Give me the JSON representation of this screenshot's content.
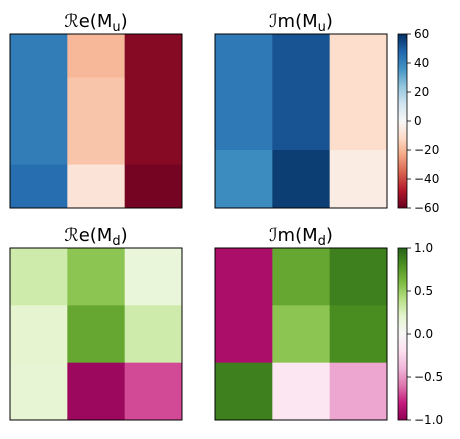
{
  "chart_data": [
    {
      "type": "heatmap",
      "title_main": "ℛe",
      "title_arg": "(M",
      "title_sub": "u",
      "title_end": ")",
      "colormap": "RdBu",
      "vmin": -60,
      "vmax": 60,
      "rows": 4,
      "cols": 3,
      "values": [
        [
          42,
          -20,
          -55
        ],
        [
          42,
          -17,
          -55
        ],
        [
          42,
          -17,
          -55
        ],
        [
          46,
          -8,
          -58
        ]
      ]
    },
    {
      "type": "heatmap",
      "title_main": "ℐm",
      "title_arg": "(M",
      "title_sub": "u",
      "title_end": ")",
      "colormap": "RdBu",
      "vmin": -60,
      "vmax": 60,
      "rows": 3,
      "cols": 3,
      "values": [
        [
          43,
          52,
          -11
        ],
        [
          43,
          52,
          -11
        ],
        [
          38,
          57,
          -5
        ]
      ],
      "colorbar_ticks": [
        "60",
        "40",
        "20",
        "0",
        "−20",
        "−40",
        "−60"
      ]
    },
    {
      "type": "heatmap",
      "title_main": "ℛe",
      "title_arg": "(M",
      "title_sub": "d",
      "title_end": ")",
      "colormap": "PiYG",
      "vmin": -1,
      "vmax": 1,
      "rows": 3,
      "cols": 3,
      "values": [
        [
          0.3,
          0.55,
          0.15
        ],
        [
          0.2,
          0.7,
          0.3
        ],
        [
          0.18,
          -0.95,
          -0.7
        ]
      ]
    },
    {
      "type": "heatmap",
      "title_main": "ℐm",
      "title_arg": "(M",
      "title_sub": "d",
      "title_end": ")",
      "colormap": "PiYG",
      "vmin": -1,
      "vmax": 1,
      "rows": 3,
      "cols": 3,
      "values": [
        [
          -0.9,
          0.7,
          0.88
        ],
        [
          -0.9,
          0.55,
          0.82
        ],
        [
          0.88,
          -0.15,
          -0.45
        ]
      ],
      "colorbar_ticks": [
        "1.0",
        "0.5",
        "0.0",
        "−0.5",
        "−1.0"
      ]
    }
  ]
}
